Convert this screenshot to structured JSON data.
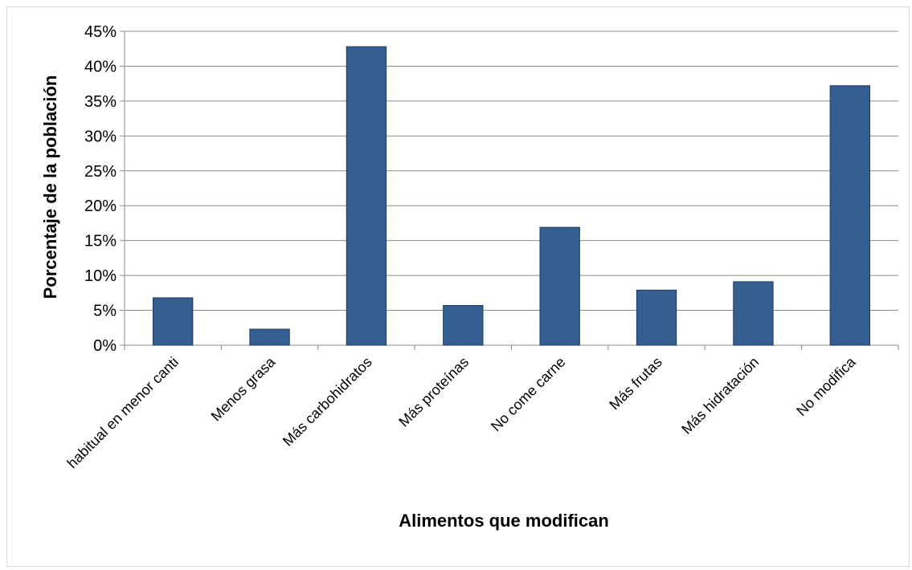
{
  "chart_data": {
    "type": "bar",
    "title": "",
    "xlabel": "Alimentos que modifican",
    "ylabel": "Porcentaje de la población",
    "categories": [
      "habitual en menor canti",
      "Menos grasa",
      "Más carbohidratos",
      "Más proteínas",
      "No come carne",
      "Más frutas",
      "Más hidratación",
      "No modifica"
    ],
    "values": [
      6.8,
      2.3,
      42.8,
      5.7,
      16.9,
      7.9,
      9.1,
      37.2
    ],
    "ylim": [
      0,
      45
    ],
    "yticks": [
      0,
      5,
      10,
      15,
      20,
      25,
      30,
      35,
      40,
      45
    ],
    "ytick_labels": [
      "0%",
      "5%",
      "10%",
      "15%",
      "20%",
      "25%",
      "30%",
      "35%",
      "40%",
      "45%"
    ],
    "grid": true,
    "legend": "none",
    "colors": {
      "bar": "#365f91",
      "bar_edge": "#1f3a5f",
      "grid": "#8c8c8c"
    }
  }
}
